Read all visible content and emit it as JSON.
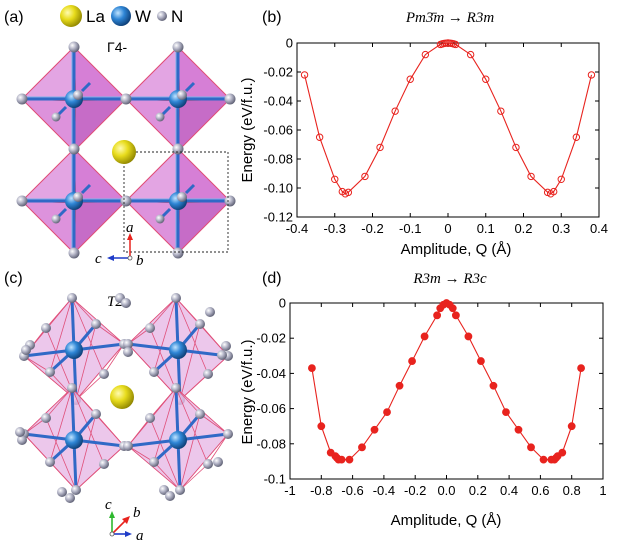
{
  "panel_a": {
    "label": "(a)",
    "legend": [
      {
        "symbol": "La",
        "color": "#e8dc1c"
      },
      {
        "symbol": "W",
        "color": "#2f86d6"
      },
      {
        "symbol": "N",
        "color": "#a9abbf"
      }
    ],
    "mode_label": "Γ4-",
    "axes": {
      "a": "a",
      "b": "b",
      "c": "c"
    },
    "colors": {
      "octahedron": "#d98cd8",
      "edge": "#e0507a",
      "bond": "#3069c6"
    }
  },
  "panel_c": {
    "label": "(c)",
    "mode_label": "T2",
    "axes": {
      "a": "a",
      "b": "b",
      "c": "c"
    }
  },
  "chart_data": [
    {
      "panel": "(b)",
      "type": "line",
      "title": "Pm3̄m → R3m",
      "xlabel": "Amplitude, Q (Å)",
      "ylabel": "Energy (eV/f.u.)",
      "xlim": [
        -0.4,
        0.4
      ],
      "ylim": [
        -0.12,
        0
      ],
      "xticks": [
        -0.4,
        -0.3,
        -0.2,
        -0.1,
        0,
        0.1,
        0.2,
        0.3,
        0.4
      ],
      "xticklabels": [
        "-0.4",
        "-0.3",
        "-0.2",
        "-0.1",
        "0",
        "0.1",
        "0.2",
        "0.3",
        "0.4"
      ],
      "yticks": [
        0,
        -0.02,
        -0.04,
        -0.06,
        -0.08,
        -0.1,
        -0.12
      ],
      "yticklabels": [
        "0",
        "-0.02",
        "-0.04",
        "-0.06",
        "-0.08",
        "-0.10",
        "-0.12"
      ],
      "marker": "open-circle",
      "color": "#e8231e",
      "series": [
        {
          "x": [
            -0.38,
            -0.34,
            -0.3,
            -0.28,
            -0.272,
            -0.264,
            -0.22,
            -0.18,
            -0.14,
            -0.1,
            -0.06,
            -0.02,
            -0.015,
            -0.01,
            -0.005,
            0,
            0.005,
            0.01,
            0.015,
            0.02,
            0.06,
            0.1,
            0.14,
            0.18,
            0.22,
            0.264,
            0.272,
            0.28,
            0.3,
            0.34,
            0.38
          ],
          "y": [
            -0.022,
            -0.065,
            -0.094,
            -0.1025,
            -0.104,
            -0.103,
            -0.092,
            -0.072,
            -0.047,
            -0.025,
            -0.008,
            -0.001,
            -0.0006,
            -0.0003,
            -0.0001,
            0,
            -0.0001,
            -0.0003,
            -0.0006,
            -0.001,
            -0.008,
            -0.025,
            -0.047,
            -0.072,
            -0.092,
            -0.103,
            -0.104,
            -0.1025,
            -0.094,
            -0.065,
            -0.022
          ]
        }
      ]
    },
    {
      "panel": "(d)",
      "type": "line",
      "title": "R3m → R3c",
      "xlabel": "Amplitude, Q (Å)",
      "ylabel": "Energy (eV/f.u.)",
      "xlim": [
        -1,
        1
      ],
      "ylim": [
        -0.1,
        0
      ],
      "xticks": [
        -1,
        -0.8,
        -0.6,
        -0.4,
        -0.2,
        0,
        0.2,
        0.4,
        0.6,
        0.8,
        1
      ],
      "xticklabels": [
        "-1",
        "-0.8",
        "-0.6",
        "-0.4",
        "-0.2",
        "0.0",
        "0.2",
        "0.4",
        "0.6",
        "0.8",
        "1"
      ],
      "yticks": [
        0,
        -0.02,
        -0.04,
        -0.06,
        -0.08,
        -0.1
      ],
      "yticklabels": [
        "0",
        "-0.02",
        "-0.04",
        "-0.06",
        "-0.08",
        "-0.1"
      ],
      "marker": "filled-circle",
      "color": "#e8231e",
      "series": [
        {
          "x": [
            -0.86,
            -0.8,
            -0.74,
            -0.71,
            -0.7,
            -0.69,
            -0.67,
            -0.62,
            -0.54,
            -0.46,
            -0.38,
            -0.3,
            -0.22,
            -0.14,
            -0.06,
            -0.04,
            -0.02,
            0,
            0.02,
            0.04,
            0.06,
            0.14,
            0.22,
            0.3,
            0.38,
            0.46,
            0.54,
            0.62,
            0.67,
            0.69,
            0.7,
            0.71,
            0.74,
            0.8,
            0.86
          ],
          "y": [
            -0.037,
            -0.07,
            -0.085,
            -0.087,
            -0.088,
            -0.089,
            -0.089,
            -0.089,
            -0.082,
            -0.072,
            -0.062,
            -0.047,
            -0.033,
            -0.019,
            -0.007,
            -0.003,
            -0.001,
            0,
            -0.001,
            -0.003,
            -0.007,
            -0.019,
            -0.033,
            -0.047,
            -0.062,
            -0.072,
            -0.082,
            -0.089,
            -0.089,
            -0.089,
            -0.088,
            -0.087,
            -0.085,
            -0.07,
            -0.037
          ]
        }
      ]
    }
  ]
}
